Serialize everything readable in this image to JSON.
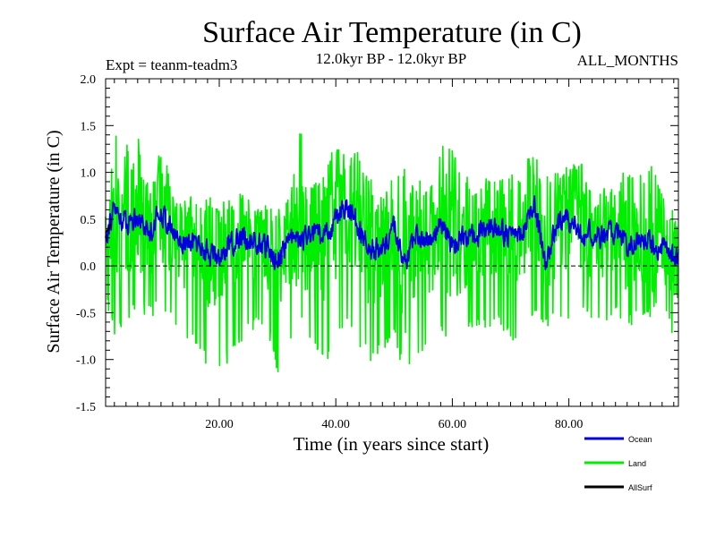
{
  "chart_data": {
    "type": "line",
    "title": "Surface Air Temperature (in C)",
    "subtitle_left": "Expt = teanm-teadm3",
    "subtitle_center": "12.0kyr BP - 12.0kyr BP",
    "subtitle_right": "ALL_MONTHS",
    "xlabel": "Time (in years since start)",
    "ylabel": "Surface Air Temperature (in C)",
    "xlim": [
      0.5,
      98.8
    ],
    "ylim": [
      -1.5,
      2.0
    ],
    "xticks": [
      20,
      40,
      60,
      80
    ],
    "xtick_labels": [
      "20.00",
      "40.00",
      "60.00",
      "80.00"
    ],
    "yticks": [
      -1.5,
      -1.0,
      -0.5,
      0.0,
      0.5,
      1.0,
      1.5,
      2.0
    ],
    "ytick_labels": [
      "-1.5",
      "-1.0",
      "-0.5",
      "0.0",
      "0.5",
      "1.0",
      "1.5",
      "2.0"
    ],
    "zero_line": 0.0,
    "legend_position": "bottom-right",
    "series": [
      {
        "name": "Land",
        "color": "#00ee00",
        "x": [
          0.5,
          2,
          4,
          6,
          8,
          10,
          12,
          14,
          16,
          18,
          20,
          22,
          24,
          26,
          28,
          30,
          32,
          34,
          36,
          38,
          40,
          42,
          44,
          46,
          48,
          50,
          52,
          54,
          56,
          58,
          60,
          62,
          64,
          66,
          68,
          70,
          72,
          74,
          76,
          78,
          80,
          82,
          84,
          86,
          88,
          90,
          92,
          94,
          96,
          98.8
        ],
        "upper": [
          0.5,
          1.45,
          1.3,
          1.4,
          0.8,
          1.35,
          0.8,
          0.75,
          0.7,
          0.75,
          0.6,
          0.7,
          0.65,
          0.6,
          0.65,
          0.6,
          0.7,
          1.5,
          0.9,
          1.05,
          1.3,
          1.3,
          1.2,
          1.0,
          0.8,
          1.0,
          1.05,
          0.8,
          0.9,
          1.3,
          1.3,
          1.0,
          0.9,
          0.9,
          0.9,
          1.1,
          1.0,
          1.35,
          1.0,
          1.0,
          1.15,
          1.15,
          0.8,
          0.9,
          0.8,
          1.1,
          0.95,
          1.1,
          0.8,
          0.5
        ],
        "lower": [
          -0.35,
          -0.75,
          -0.6,
          -0.5,
          -0.55,
          -0.5,
          -0.6,
          -0.75,
          -0.85,
          -1.1,
          -1.15,
          -1.0,
          -0.8,
          -0.7,
          -0.6,
          -1.2,
          -0.8,
          -0.65,
          -0.8,
          -1.1,
          -0.8,
          -0.7,
          -0.85,
          -1.05,
          -0.9,
          -0.8,
          -1.2,
          -1.05,
          -0.9,
          -0.75,
          -0.8,
          -0.7,
          -0.65,
          -0.75,
          -0.6,
          -0.85,
          -0.8,
          -0.5,
          -0.7,
          -0.6,
          -0.65,
          -0.5,
          -0.6,
          -0.65,
          -0.5,
          -0.7,
          -0.55,
          -0.6,
          -0.45,
          -0.9
        ]
      },
      {
        "name": "Ocean",
        "color": "#0000dd",
        "x": [
          0.5,
          2,
          4,
          6,
          8,
          10,
          12,
          14,
          16,
          18,
          20,
          22,
          24,
          26,
          28,
          30,
          32,
          34,
          36,
          38,
          40,
          42,
          44,
          46,
          48,
          50,
          52,
          54,
          56,
          58,
          60,
          62,
          64,
          66,
          68,
          70,
          72,
          74,
          76,
          78,
          80,
          82,
          84,
          86,
          88,
          90,
          92,
          94,
          96,
          98.8
        ],
        "values": [
          0.35,
          0.6,
          0.45,
          0.55,
          0.35,
          0.6,
          0.35,
          0.25,
          0.25,
          0.15,
          0.1,
          0.25,
          0.3,
          0.25,
          0.2,
          0.05,
          0.3,
          0.25,
          0.35,
          0.3,
          0.5,
          0.65,
          0.4,
          0.2,
          0.15,
          0.45,
          0.0,
          0.35,
          0.3,
          0.4,
          0.25,
          0.3,
          0.3,
          0.45,
          0.4,
          0.3,
          0.35,
          0.65,
          0.05,
          0.45,
          0.5,
          0.35,
          0.35,
          0.3,
          0.4,
          0.2,
          0.3,
          0.25,
          0.2,
          0.05
        ]
      },
      {
        "name": "AllSurf",
        "color": "#000000",
        "x": [
          0.5,
          1.5
        ],
        "values": [
          0.35,
          0.45
        ]
      }
    ]
  }
}
